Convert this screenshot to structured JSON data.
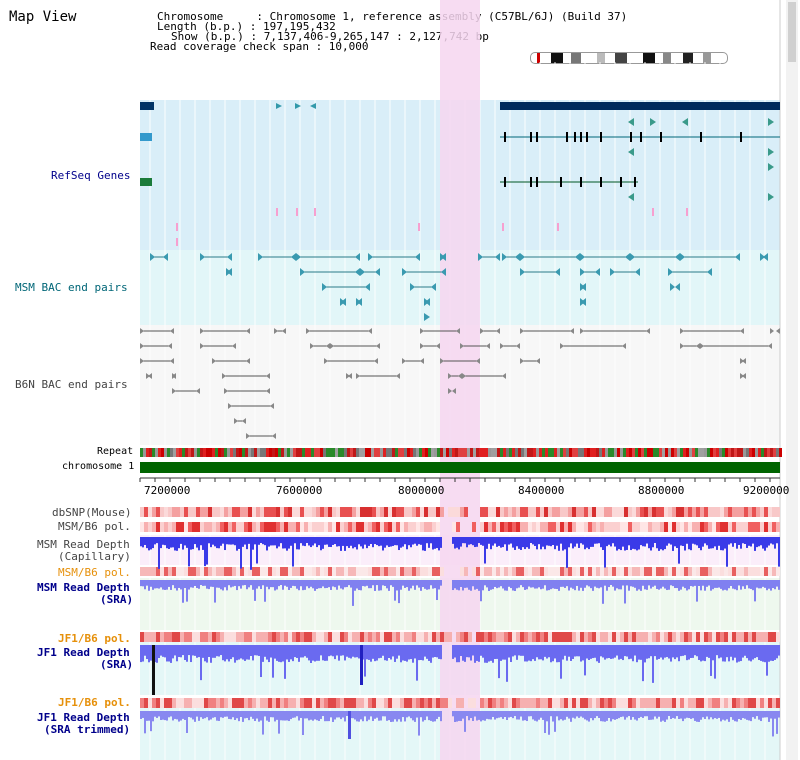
{
  "title": "Map View",
  "info": {
    "chromosome": "Chromosome     : Chromosome 1, reference assembly (C57BL/6J) (Build 37)",
    "length": "Length (b.p.) : 197,195,432",
    "show": "Show (b.p.) : 7,137,406-9,265,147 : 2,127,742 bp",
    "read_span": "Read coverage check span : 10,000"
  },
  "tracks": {
    "refseq": "RefSeq Genes",
    "msm_bac": "MSM BAC end pairs",
    "b6n_bac": "B6N BAC end pairs",
    "repeat": "Repeat",
    "chromosome": "chromosome 1",
    "dbsnp": "dbSNP(Mouse)",
    "msm_b6_pol": "MSM/B6 pol.",
    "msm_depth_cap_1": "MSM Read Depth",
    "msm_depth_cap_2": "(Capillary)",
    "msm_b6_pol_2": "MSM/B6 pol.",
    "msm_depth_sra_1": "MSM Read Depth",
    "msm_depth_sra_2": "(SRA)",
    "jf1_b6_pol": "JF1/B6 pol.",
    "jf1_depth_sra_1": "JF1 Read Depth",
    "jf1_depth_sra_2": "(SRA)",
    "jf1_b6_pol_2": "JF1/B6 pol.",
    "jf1_depth_trim_1": "JF1 Read Depth",
    "jf1_depth_trim_2": "(SRA trimmed)"
  },
  "axis": {
    "ticks": [
      "7200000",
      "7600000",
      "8000000",
      "8400000",
      "8800000",
      "9200000"
    ]
  },
  "colors": {
    "refseq_bg": "#d9eef8",
    "bac_bg": "#e2f6f8",
    "highlight": "#f6d6f0",
    "chrom": "#006400",
    "label_blue": "#00008b",
    "label_teal": "#006677",
    "label_orange": "#e6900a"
  }
}
